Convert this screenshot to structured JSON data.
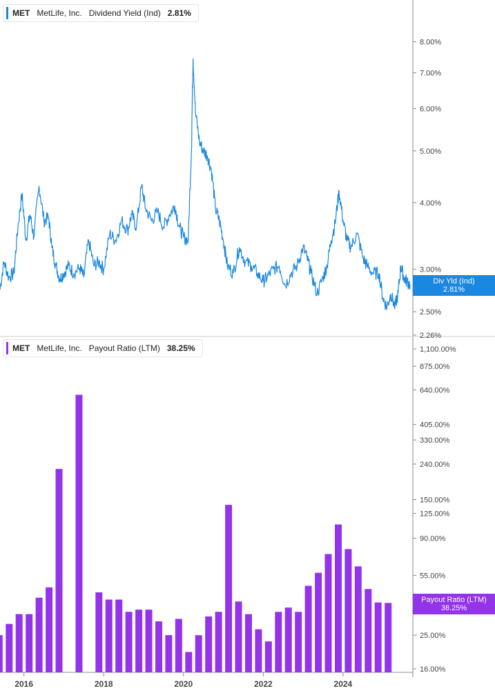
{
  "colors": {
    "yield_line": "#1a87e0",
    "payout_bar": "#9333ea",
    "axis": "#888888",
    "grid_text": "#444444"
  },
  "top_legend": {
    "ticker": "MET",
    "name": "MetLife, Inc.",
    "label": "Dividend Yield (Ind)",
    "value": "2.81%"
  },
  "bottom_legend": {
    "ticker": "MET",
    "name": "MetLife, Inc.",
    "label": "Payout Ratio (LTM)",
    "value": "38.25%"
  },
  "top_tag": {
    "line1": "Div Yld (Ind)",
    "line2": "2.81%"
  },
  "bottom_tag": {
    "line1": "Payout Ratio (LTM)",
    "line2": "38.25%"
  },
  "chart_data": [
    {
      "type": "line",
      "title": "Dividend Yield (Ind)",
      "y_scale": "log",
      "ylim": [
        2.26,
        9.3
      ],
      "y_ticks": [
        {
          "value": 8.0,
          "label": "8.00%"
        },
        {
          "value": 7.0,
          "label": "7.00%"
        },
        {
          "value": 6.0,
          "label": "6.00%"
        },
        {
          "value": 5.0,
          "label": "5.00%"
        },
        {
          "value": 4.0,
          "label": "4.00%"
        },
        {
          "value": 3.0,
          "label": "3.00%"
        },
        {
          "value": 2.5,
          "label": "2.50%"
        },
        {
          "value": 2.26,
          "label": "2.26%"
        }
      ],
      "xlim": [
        2015.4,
        2025.75
      ],
      "series": [
        {
          "name": "Div Yld (Ind)",
          "points": [
            [
              2015.4,
              2.75
            ],
            [
              2015.5,
              3.1
            ],
            [
              2015.62,
              2.9
            ],
            [
              2015.75,
              2.95
            ],
            [
              2015.85,
              3.6
            ],
            [
              2015.95,
              4.15
            ],
            [
              2016.05,
              3.4
            ],
            [
              2016.15,
              3.8
            ],
            [
              2016.25,
              3.45
            ],
            [
              2016.38,
              4.3
            ],
            [
              2016.5,
              3.7
            ],
            [
              2016.62,
              3.75
            ],
            [
              2016.7,
              3.3
            ],
            [
              2016.8,
              3.05
            ],
            [
              2016.9,
              2.88
            ],
            [
              2017.0,
              2.95
            ],
            [
              2017.12,
              3.05
            ],
            [
              2017.25,
              2.95
            ],
            [
              2017.4,
              3.02
            ],
            [
              2017.5,
              2.9
            ],
            [
              2017.62,
              3.4
            ],
            [
              2017.75,
              3.05
            ],
            [
              2017.88,
              3.1
            ],
            [
              2018.0,
              3.0
            ],
            [
              2018.15,
              3.5
            ],
            [
              2018.3,
              3.4
            ],
            [
              2018.45,
              3.7
            ],
            [
              2018.6,
              3.55
            ],
            [
              2018.7,
              3.8
            ],
            [
              2018.82,
              3.6
            ],
            [
              2018.95,
              4.3
            ],
            [
              2019.05,
              3.9
            ],
            [
              2019.2,
              3.7
            ],
            [
              2019.35,
              3.85
            ],
            [
              2019.5,
              3.6
            ],
            [
              2019.65,
              3.8
            ],
            [
              2019.78,
              3.95
            ],
            [
              2019.9,
              3.6
            ],
            [
              2020.0,
              3.45
            ],
            [
              2020.12,
              3.4
            ],
            [
              2020.2,
              5.0
            ],
            [
              2020.24,
              7.45
            ],
            [
              2020.3,
              5.9
            ],
            [
              2020.4,
              5.2
            ],
            [
              2020.5,
              5.0
            ],
            [
              2020.6,
              4.9
            ],
            [
              2020.7,
              4.6
            ],
            [
              2020.8,
              3.9
            ],
            [
              2020.9,
              3.7
            ],
            [
              2021.0,
              3.4
            ],
            [
              2021.1,
              3.05
            ],
            [
              2021.25,
              2.95
            ],
            [
              2021.4,
              3.3
            ],
            [
              2021.55,
              3.1
            ],
            [
              2021.7,
              3.05
            ],
            [
              2021.85,
              2.95
            ],
            [
              2022.0,
              2.85
            ],
            [
              2022.1,
              2.9
            ],
            [
              2022.25,
              3.0
            ],
            [
              2022.4,
              3.05
            ],
            [
              2022.55,
              2.8
            ],
            [
              2022.7,
              2.95
            ],
            [
              2022.85,
              3.05
            ],
            [
              2023.0,
              3.3
            ],
            [
              2023.1,
              3.15
            ],
            [
              2023.2,
              2.95
            ],
            [
              2023.35,
              2.7
            ],
            [
              2023.5,
              2.9
            ],
            [
              2023.6,
              3.05
            ],
            [
              2023.7,
              3.4
            ],
            [
              2023.8,
              3.65
            ],
            [
              2023.9,
              4.2
            ],
            [
              2024.0,
              3.7
            ],
            [
              2024.1,
              3.4
            ],
            [
              2024.2,
              3.3
            ],
            [
              2024.35,
              3.5
            ],
            [
              2024.5,
              3.15
            ],
            [
              2024.6,
              3.05
            ],
            [
              2024.75,
              2.95
            ],
            [
              2024.9,
              2.95
            ],
            [
              2025.0,
              2.65
            ],
            [
              2025.1,
              2.55
            ],
            [
              2025.2,
              2.7
            ],
            [
              2025.3,
              2.55
            ],
            [
              2025.38,
              2.7
            ],
            [
              2025.45,
              3.05
            ],
            [
              2025.52,
              2.9
            ],
            [
              2025.6,
              2.85
            ],
            [
              2025.68,
              2.81
            ]
          ]
        }
      ]
    },
    {
      "type": "bar",
      "title": "Payout Ratio (LTM)",
      "y_scale": "log",
      "ylim": [
        16,
        1100
      ],
      "y_ticks": [
        {
          "value": 1100,
          "label": "1,100.00%"
        },
        {
          "value": 875,
          "label": "875.00%"
        },
        {
          "value": 640,
          "label": "640.00%"
        },
        {
          "value": 405,
          "label": "405.00%"
        },
        {
          "value": 330,
          "label": "330.00%"
        },
        {
          "value": 240,
          "label": "240.00%"
        },
        {
          "value": 150,
          "label": "150.00%"
        },
        {
          "value": 125,
          "label": "125.00%"
        },
        {
          "value": 90,
          "label": "90.00%"
        },
        {
          "value": 55,
          "label": "55.00%"
        },
        {
          "value": 25,
          "label": "25.00%"
        },
        {
          "value": 16,
          "label": "16.00%"
        }
      ],
      "xlim": [
        2015.4,
        2025.75
      ],
      "x_ticks": [
        {
          "value": 2016,
          "label": "2016"
        },
        {
          "value": 2018,
          "label": "2018"
        },
        {
          "value": 2020,
          "label": "2020"
        },
        {
          "value": 2022,
          "label": "2022"
        },
        {
          "value": 2024,
          "label": "2024"
        }
      ],
      "series": [
        {
          "name": "Payout Ratio (LTM)",
          "points": [
            [
              2015.38,
              25
            ],
            [
              2015.63,
              29
            ],
            [
              2015.88,
              33
            ],
            [
              2016.13,
              33
            ],
            [
              2016.38,
              41
            ],
            [
              2016.63,
              47
            ],
            [
              2016.88,
              225
            ],
            [
              2017.38,
              600
            ],
            [
              2017.88,
              44
            ],
            [
              2018.13,
              40
            ],
            [
              2018.38,
              40
            ],
            [
              2018.63,
              34
            ],
            [
              2018.88,
              35
            ],
            [
              2019.13,
              35
            ],
            [
              2019.38,
              30
            ],
            [
              2019.63,
              25
            ],
            [
              2019.88,
              31
            ],
            [
              2020.13,
              20
            ],
            [
              2020.38,
              25
            ],
            [
              2020.63,
              32
            ],
            [
              2020.88,
              34
            ],
            [
              2021.13,
              140
            ],
            [
              2021.38,
              39
            ],
            [
              2021.63,
              33
            ],
            [
              2021.88,
              27
            ],
            [
              2022.13,
              23
            ],
            [
              2022.38,
              34
            ],
            [
              2022.63,
              36
            ],
            [
              2022.88,
              34
            ],
            [
              2023.13,
              48
            ],
            [
              2023.38,
              57
            ],
            [
              2023.63,
              73
            ],
            [
              2023.88,
              108
            ],
            [
              2024.13,
              78
            ],
            [
              2024.38,
              62
            ],
            [
              2024.63,
              46
            ],
            [
              2024.88,
              38.5
            ],
            [
              2025.13,
              38.25
            ]
          ]
        }
      ]
    }
  ]
}
